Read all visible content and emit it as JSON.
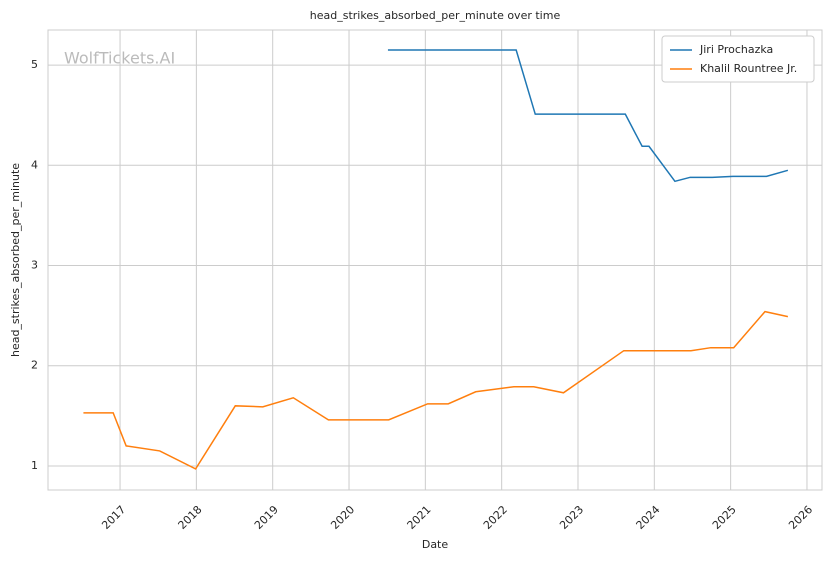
{
  "chart_data": {
    "type": "line",
    "title": "head_strikes_absorbed_per_minute over time",
    "xlabel": "Date",
    "ylabel": "head_strikes_absorbed_per_minute",
    "watermark": "WolfTickets.AI",
    "xlim": [
      2016.056,
      2026.197
    ],
    "xticks": [
      2017,
      2018,
      2019,
      2020,
      2021,
      2022,
      2023,
      2024,
      2025,
      2026
    ],
    "ylim": [
      0.76,
      5.35
    ],
    "yticks": [
      1,
      2,
      3,
      4,
      5
    ],
    "grid": true,
    "legend": "upper right",
    "series": [
      {
        "name": "Jiri Prochazka",
        "color": "#1f77b4",
        "x": [
          2020.51,
          2022.19,
          2022.44,
          2023.62,
          2023.84,
          2023.93,
          2024.27,
          2024.47,
          2024.76,
          2025.03,
          2025.47,
          2025.75
        ],
        "values": [
          5.15,
          5.15,
          4.51,
          4.51,
          4.19,
          4.19,
          3.84,
          3.88,
          3.88,
          3.89,
          3.89,
          3.95
        ]
      },
      {
        "name": "Khalil Rountree Jr.",
        "color": "#ff7f0e",
        "x": [
          2016.52,
          2016.91,
          2017.08,
          2017.52,
          2017.99,
          2018.51,
          2018.87,
          2019.27,
          2019.73,
          2020.52,
          2021.03,
          2021.3,
          2021.66,
          2022.16,
          2022.42,
          2022.81,
          2023.6,
          2023.94,
          2024.48,
          2024.74,
          2025.04,
          2025.45,
          2025.75
        ],
        "values": [
          1.53,
          1.53,
          1.2,
          1.15,
          0.97,
          1.6,
          1.59,
          1.68,
          1.46,
          1.46,
          1.62,
          1.62,
          1.74,
          1.79,
          1.79,
          1.73,
          2.15,
          2.15,
          2.15,
          2.18,
          2.18,
          2.54,
          2.49
        ]
      }
    ]
  }
}
